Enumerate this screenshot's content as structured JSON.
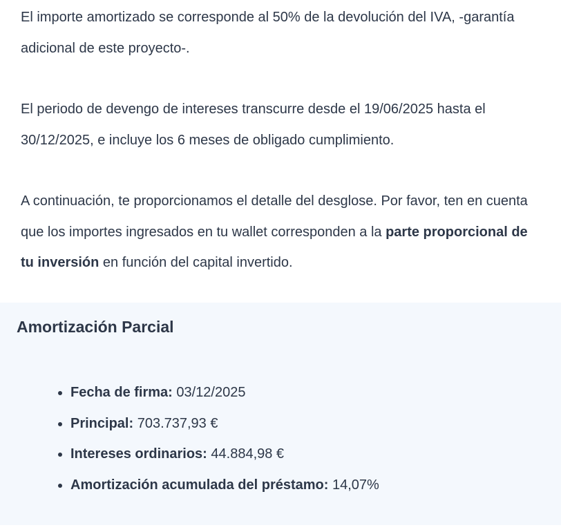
{
  "paragraphs": {
    "p1": "El importe amortizado se corresponde al 50% de la devolución del IVA, -garantía adicional de este proyecto-.",
    "p2": "El periodo de devengo de intereses transcurre desde el 19/06/2025 hasta el 30/12/2025, e incluye los 6 meses de obligado cumplimiento.",
    "p3_start": "A continuación, te proporcionamos el detalle del desglose. Por favor, ten en cuenta que los importes ingresados en tu wallet corresponden a la ",
    "p3_bold": "parte proporcional de tu inversión",
    "p3_end": " en función del capital invertido."
  },
  "summary": {
    "title": "Amortización Parcial",
    "items": [
      {
        "label": "Fecha de firma:",
        "value": " 03/12/2025"
      },
      {
        "label": "Principal:",
        "value": " 703.737,93 €"
      },
      {
        "label": "Intereses ordinarios:",
        "value": " 44.884,98 €"
      },
      {
        "label": "Amortización acumulada del préstamo:",
        "value": " 14,07%"
      }
    ]
  }
}
